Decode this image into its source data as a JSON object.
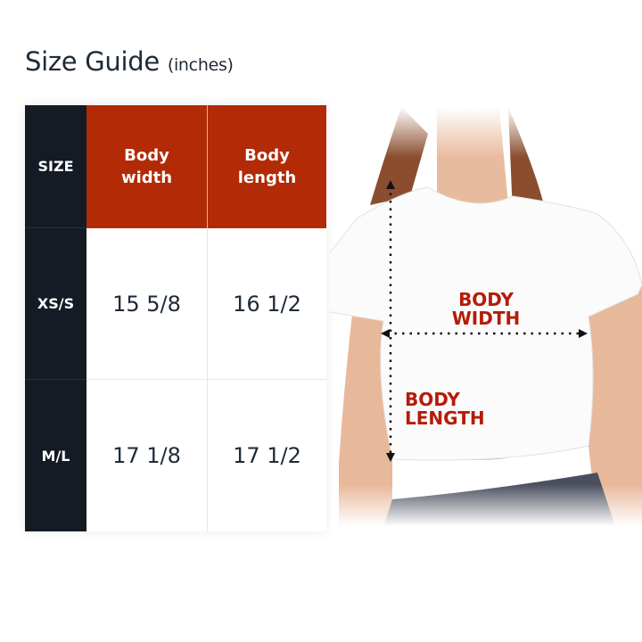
{
  "title": {
    "main": "Size Guide",
    "unit": "(inches)"
  },
  "table": {
    "headers": [
      "SIZE",
      "Body width",
      "Body length"
    ],
    "rows": [
      {
        "size": "XS/S",
        "body_width": "15 5/8",
        "body_length": "16 1/2"
      },
      {
        "size": "M/L",
        "body_width": "17 1/8",
        "body_length": "17 1/2"
      }
    ]
  },
  "illustration": {
    "width_label": "BODY WIDTH",
    "length_label": "BODY LENGTH"
  },
  "colors": {
    "accent": "#b22a06",
    "dark": "#151b24",
    "label": "#b51c08"
  }
}
